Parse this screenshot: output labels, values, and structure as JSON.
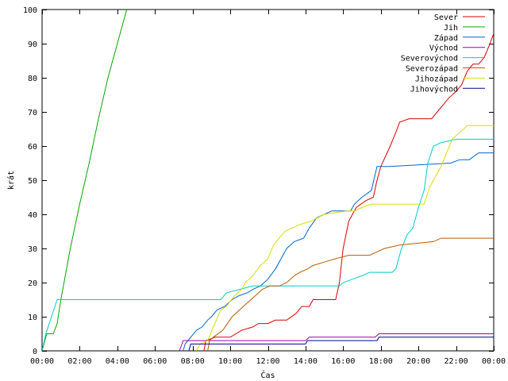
{
  "chart_data": {
    "type": "line",
    "title": "",
    "xlabel": "Čas",
    "ylabel": "krát",
    "xlim": [
      0,
      24
    ],
    "ylim": [
      0,
      100
    ],
    "grid": false,
    "legend_position": "top-right",
    "x_ticks": [
      {
        "value": 0,
        "label": "00:00"
      },
      {
        "value": 2,
        "label": "02:00"
      },
      {
        "value": 4,
        "label": "04:00"
      },
      {
        "value": 6,
        "label": "06:00"
      },
      {
        "value": 8,
        "label": "08:00"
      },
      {
        "value": 10,
        "label": "10:00"
      },
      {
        "value": 12,
        "label": "12:00"
      },
      {
        "value": 14,
        "label": "14:00"
      },
      {
        "value": 16,
        "label": "16:00"
      },
      {
        "value": 18,
        "label": "18:00"
      },
      {
        "value": 20,
        "label": "20:00"
      },
      {
        "value": 22,
        "label": "22:00"
      },
      {
        "value": 24,
        "label": "00:00"
      }
    ],
    "y_ticks": [
      0,
      10,
      20,
      30,
      40,
      50,
      60,
      70,
      80,
      90,
      100
    ],
    "series": [
      {
        "name": "Sever",
        "color": "#dd0000",
        "points": [
          [
            8.6,
            0
          ],
          [
            8.7,
            3
          ],
          [
            9.2,
            4
          ],
          [
            10.0,
            4
          ],
          [
            10.3,
            5
          ],
          [
            10.6,
            6
          ],
          [
            11.2,
            7
          ],
          [
            11.5,
            8
          ],
          [
            12.0,
            8
          ],
          [
            12.4,
            9
          ],
          [
            13.0,
            9
          ],
          [
            13.5,
            11
          ],
          [
            13.8,
            13
          ],
          [
            14.2,
            13
          ],
          [
            14.4,
            15
          ],
          [
            15.6,
            15
          ],
          [
            15.8,
            20
          ],
          [
            16.0,
            30
          ],
          [
            16.3,
            38
          ],
          [
            16.7,
            42
          ],
          [
            17.2,
            44
          ],
          [
            17.6,
            45
          ],
          [
            17.8,
            50
          ],
          [
            18.0,
            54
          ],
          [
            18.5,
            60
          ],
          [
            18.8,
            64
          ],
          [
            19.0,
            67
          ],
          [
            19.5,
            68
          ],
          [
            20.7,
            68
          ],
          [
            21.0,
            70
          ],
          [
            21.3,
            72
          ],
          [
            21.6,
            74
          ],
          [
            22.0,
            76
          ],
          [
            22.3,
            78
          ],
          [
            22.6,
            82
          ],
          [
            22.9,
            84
          ],
          [
            23.2,
            84
          ],
          [
            23.5,
            86
          ],
          [
            23.8,
            90
          ],
          [
            24.0,
            93
          ]
        ]
      },
      {
        "name": "Jih",
        "color": "#00aa00",
        "points": [
          [
            0.0,
            0
          ],
          [
            0.25,
            5
          ],
          [
            0.6,
            5
          ],
          [
            0.8,
            8
          ],
          [
            1.0,
            15
          ],
          [
            1.5,
            30
          ],
          [
            2.0,
            43
          ],
          [
            2.5,
            55
          ],
          [
            3.0,
            68
          ],
          [
            3.5,
            80
          ],
          [
            4.0,
            90
          ],
          [
            4.5,
            100
          ]
        ]
      },
      {
        "name": "Západ",
        "color": "#0066cc",
        "points": [
          [
            7.5,
            0
          ],
          [
            7.6,
            2
          ],
          [
            7.9,
            4
          ],
          [
            8.2,
            6
          ],
          [
            8.5,
            7
          ],
          [
            8.8,
            9
          ],
          [
            9.0,
            10
          ],
          [
            9.3,
            12
          ],
          [
            9.7,
            13
          ],
          [
            10.1,
            15
          ],
          [
            10.4,
            16
          ],
          [
            10.9,
            17
          ],
          [
            11.2,
            18
          ],
          [
            11.6,
            19
          ],
          [
            12.0,
            21
          ],
          [
            12.4,
            24
          ],
          [
            12.7,
            27
          ],
          [
            13.0,
            30
          ],
          [
            13.4,
            32
          ],
          [
            13.9,
            33
          ],
          [
            14.2,
            36
          ],
          [
            14.6,
            39
          ],
          [
            15.0,
            40
          ],
          [
            15.4,
            41
          ],
          [
            16.4,
            41
          ],
          [
            16.6,
            43
          ],
          [
            17.0,
            45
          ],
          [
            17.5,
            47
          ],
          [
            17.8,
            54
          ],
          [
            18.1,
            54
          ],
          [
            18.4,
            54
          ],
          [
            21.7,
            55
          ],
          [
            22.2,
            56
          ],
          [
            22.7,
            56
          ],
          [
            23.2,
            58
          ],
          [
            24.0,
            58
          ]
        ]
      },
      {
        "name": "Východ",
        "color": "#9900aa",
        "points": [
          [
            7.3,
            0
          ],
          [
            7.5,
            3
          ],
          [
            14.0,
            3
          ],
          [
            14.2,
            4
          ],
          [
            17.7,
            4
          ],
          [
            17.9,
            5
          ],
          [
            24.0,
            5
          ]
        ]
      },
      {
        "name": "Severovýchod",
        "color": "#00cccc",
        "points": [
          [
            0.0,
            0
          ],
          [
            0.2,
            5
          ],
          [
            0.5,
            10
          ],
          [
            0.8,
            15
          ],
          [
            9.5,
            15
          ],
          [
            9.8,
            17
          ],
          [
            10.5,
            18
          ],
          [
            11.2,
            19
          ],
          [
            15.8,
            19
          ],
          [
            16.0,
            20
          ],
          [
            16.5,
            21
          ],
          [
            17.0,
            22
          ],
          [
            17.4,
            23
          ],
          [
            18.6,
            23
          ],
          [
            18.8,
            24
          ],
          [
            19.1,
            30
          ],
          [
            19.4,
            34
          ],
          [
            19.7,
            36
          ],
          [
            20.0,
            42
          ],
          [
            20.3,
            47
          ],
          [
            20.5,
            55
          ],
          [
            20.8,
            60
          ],
          [
            21.2,
            61
          ],
          [
            22.0,
            62
          ],
          [
            24.0,
            62
          ]
        ]
      },
      {
        "name": "Severozápad",
        "color": "#b85c00",
        "points": [
          [
            8.8,
            0
          ],
          [
            8.9,
            3
          ],
          [
            9.1,
            4
          ],
          [
            9.6,
            6
          ],
          [
            10.1,
            10
          ],
          [
            10.5,
            12
          ],
          [
            10.9,
            14
          ],
          [
            11.3,
            16
          ],
          [
            11.7,
            18
          ],
          [
            12.1,
            19
          ],
          [
            12.6,
            19
          ],
          [
            13.0,
            20
          ],
          [
            13.4,
            22
          ],
          [
            13.7,
            23
          ],
          [
            14.1,
            24
          ],
          [
            14.4,
            25
          ],
          [
            15.0,
            26
          ],
          [
            15.6,
            27
          ],
          [
            16.3,
            28
          ],
          [
            17.4,
            28
          ],
          [
            17.8,
            29
          ],
          [
            18.2,
            30
          ],
          [
            19.0,
            31
          ],
          [
            20.8,
            32
          ],
          [
            21.2,
            33
          ],
          [
            24.0,
            33
          ]
        ]
      },
      {
        "name": "Jihozápad",
        "color": "#dddd00",
        "points": [
          [
            8.2,
            0
          ],
          [
            8.4,
            2
          ],
          [
            8.8,
            3
          ],
          [
            9.1,
            7
          ],
          [
            9.5,
            12
          ],
          [
            9.8,
            13
          ],
          [
            10.2,
            16
          ],
          [
            10.6,
            18
          ],
          [
            10.8,
            20
          ],
          [
            11.2,
            22
          ],
          [
            11.6,
            25
          ],
          [
            12.0,
            27
          ],
          [
            12.3,
            31
          ],
          [
            12.6,
            33
          ],
          [
            12.9,
            35
          ],
          [
            13.3,
            36
          ],
          [
            13.7,
            37
          ],
          [
            14.3,
            38
          ],
          [
            15.0,
            40
          ],
          [
            16.2,
            41
          ],
          [
            16.6,
            41
          ],
          [
            17.0,
            42
          ],
          [
            17.5,
            43
          ],
          [
            20.3,
            43
          ],
          [
            20.6,
            48
          ],
          [
            20.9,
            51
          ],
          [
            21.2,
            54
          ],
          [
            21.5,
            58
          ],
          [
            21.8,
            62
          ],
          [
            22.2,
            64
          ],
          [
            22.6,
            66
          ],
          [
            24.0,
            66
          ]
        ]
      },
      {
        "name": "Jihovýchod",
        "color": "#000099",
        "points": [
          [
            7.8,
            0
          ],
          [
            7.9,
            2
          ],
          [
            14.0,
            2
          ],
          [
            14.1,
            3
          ],
          [
            17.8,
            3
          ],
          [
            17.9,
            4
          ],
          [
            24.0,
            4
          ]
        ]
      }
    ]
  }
}
